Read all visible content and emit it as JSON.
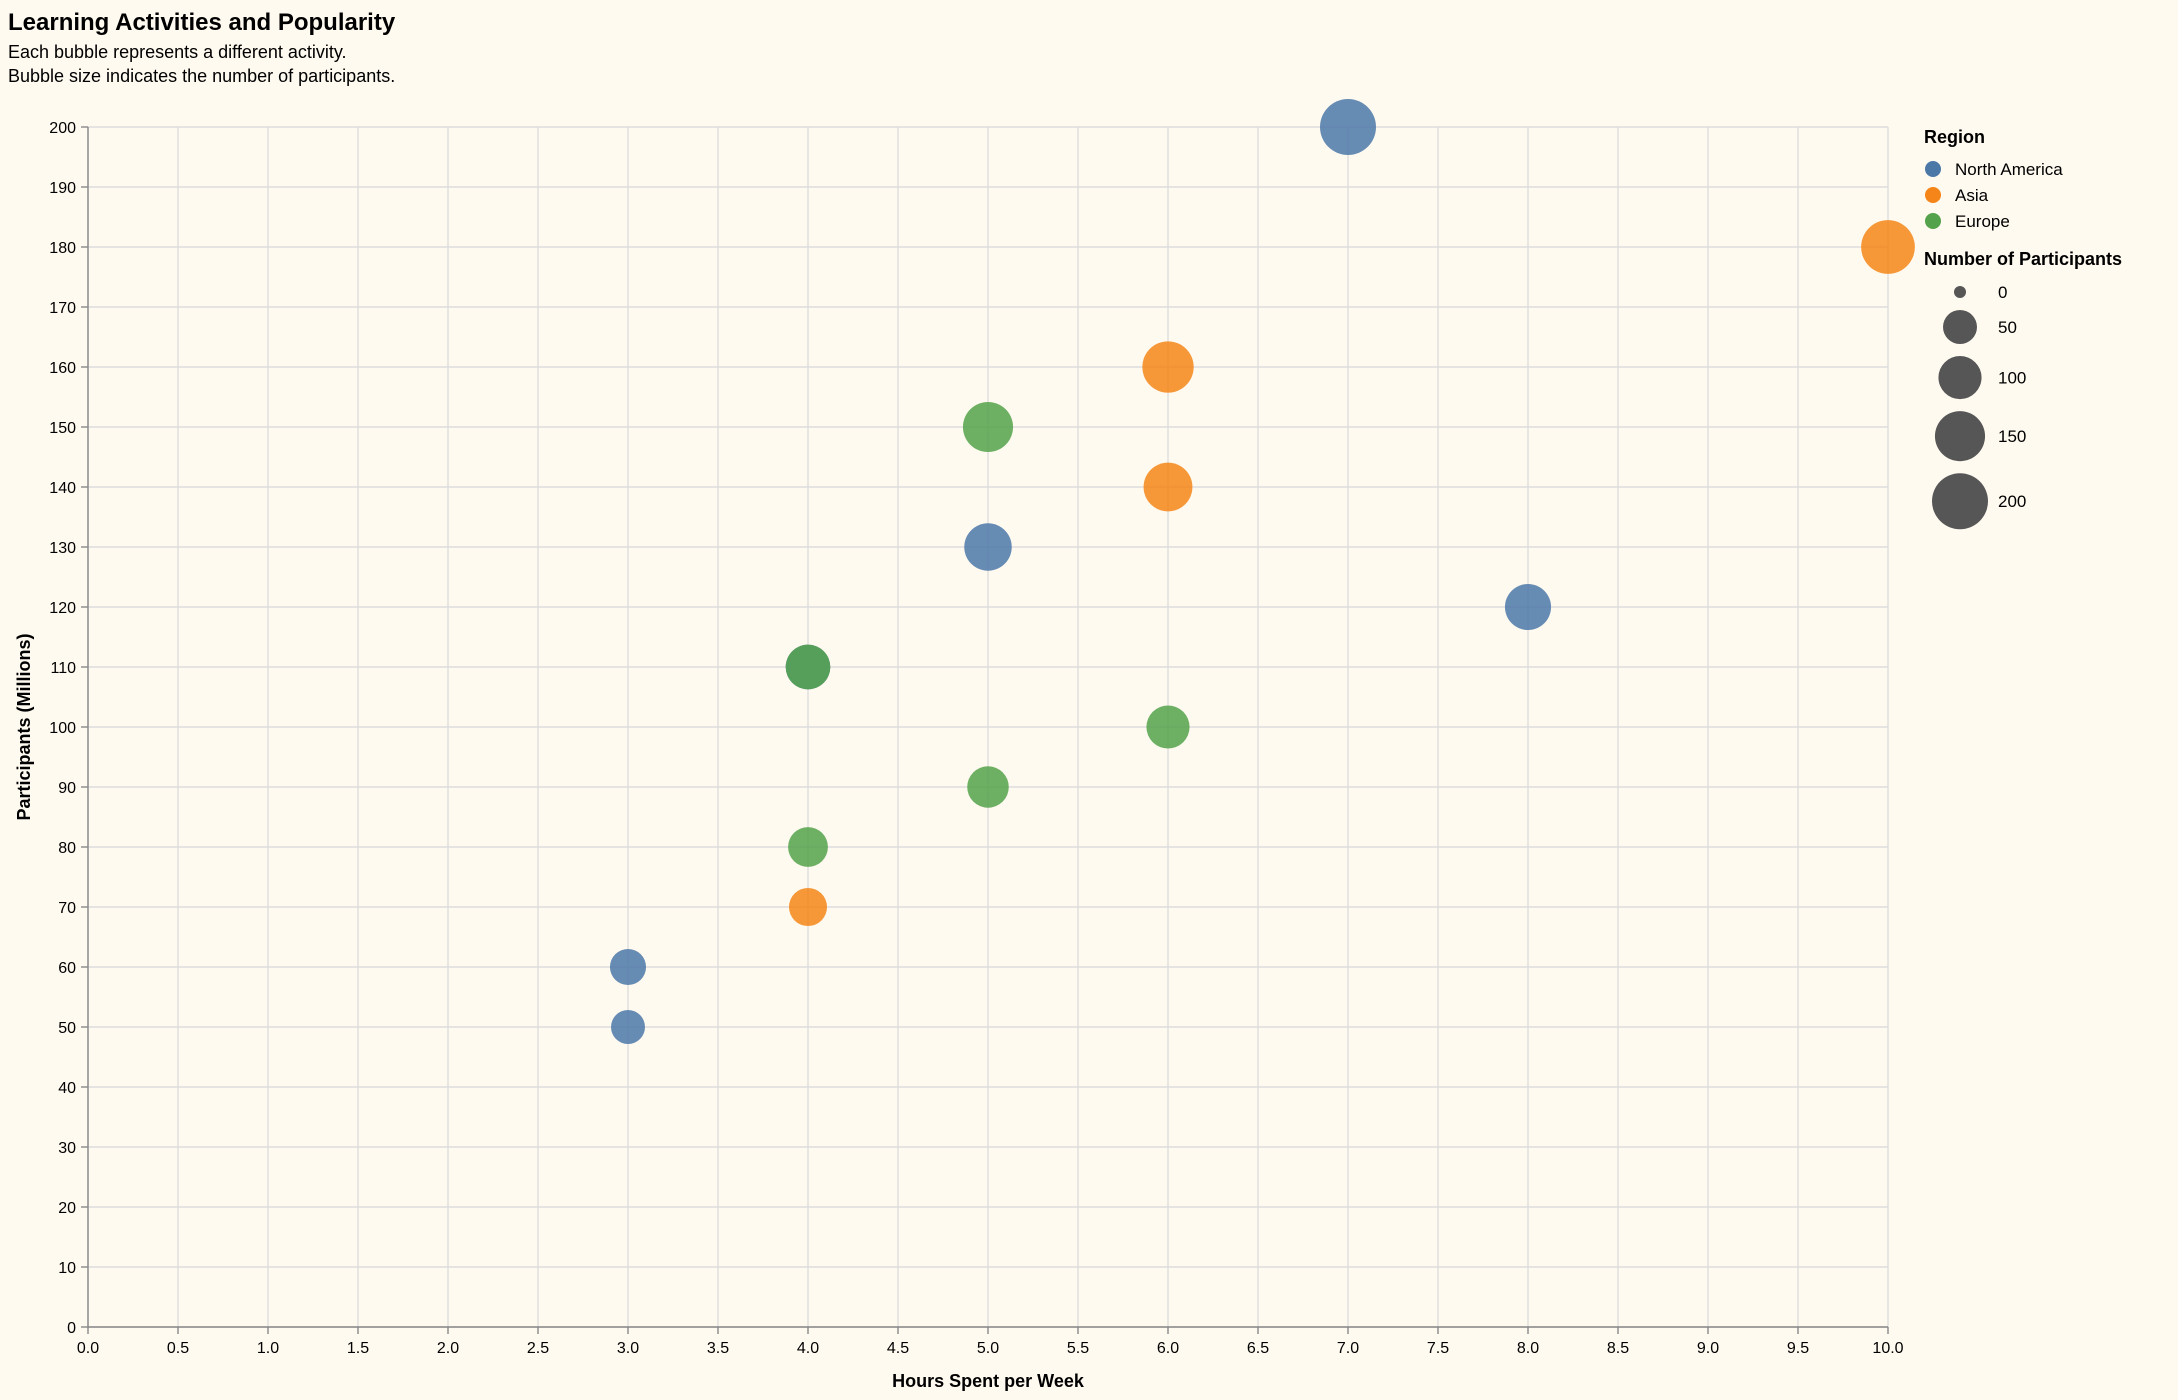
{
  "chart_data": {
    "type": "scatter",
    "title": "Learning Activities and Popularity",
    "subtitle": [
      "Each bubble represents a different activity.",
      "Bubble size indicates the number of participants."
    ],
    "xlabel": "Hours Spent per Week",
    "ylabel": "Participants (Millions)",
    "xlim": [
      0,
      10
    ],
    "ylim": [
      0,
      200
    ],
    "x_ticks": [
      "0.0",
      "0.5",
      "1.0",
      "1.5",
      "2.0",
      "2.5",
      "3.0",
      "3.5",
      "4.0",
      "4.5",
      "5.0",
      "5.5",
      "6.0",
      "6.5",
      "7.0",
      "7.5",
      "8.0",
      "8.5",
      "9.0",
      "9.5",
      "10.0"
    ],
    "y_ticks": [
      "0",
      "10",
      "20",
      "30",
      "40",
      "50",
      "60",
      "70",
      "80",
      "90",
      "100",
      "110",
      "120",
      "130",
      "140",
      "150",
      "160",
      "170",
      "180",
      "190",
      "200"
    ],
    "grid": true,
    "legend_placement": "right",
    "color_legend": {
      "title": "Region",
      "entries": [
        {
          "name": "North America",
          "color": "#4c78a8"
        },
        {
          "name": "Asia",
          "color": "#f58518"
        },
        {
          "name": "Europe",
          "color": "#54a24b"
        }
      ]
    },
    "size_legend": {
      "title": "Number of Participants",
      "values": [
        0,
        50,
        100,
        150,
        200
      ],
      "labels": [
        "0",
        "50",
        "100",
        "150",
        "200"
      ]
    },
    "series": [
      {
        "name": "North America",
        "color": "#4c78a8",
        "points": [
          {
            "x": 7,
            "y": 200
          },
          {
            "x": 5,
            "y": 130
          },
          {
            "x": 8,
            "y": 120
          },
          {
            "x": 4,
            "y": 110
          },
          {
            "x": 3,
            "y": 60
          },
          {
            "x": 3,
            "y": 50
          }
        ]
      },
      {
        "name": "Asia",
        "color": "#f58518",
        "points": [
          {
            "x": 10,
            "y": 180
          },
          {
            "x": 6,
            "y": 160
          },
          {
            "x": 6,
            "y": 140
          },
          {
            "x": 4,
            "y": 70
          }
        ]
      },
      {
        "name": "Europe",
        "color": "#54a24b",
        "points": [
          {
            "x": 5,
            "y": 150
          },
          {
            "x": 4,
            "y": 110
          },
          {
            "x": 6,
            "y": 100
          },
          {
            "x": 5,
            "y": 90
          },
          {
            "x": 4,
            "y": 80
          }
        ]
      }
    ]
  }
}
